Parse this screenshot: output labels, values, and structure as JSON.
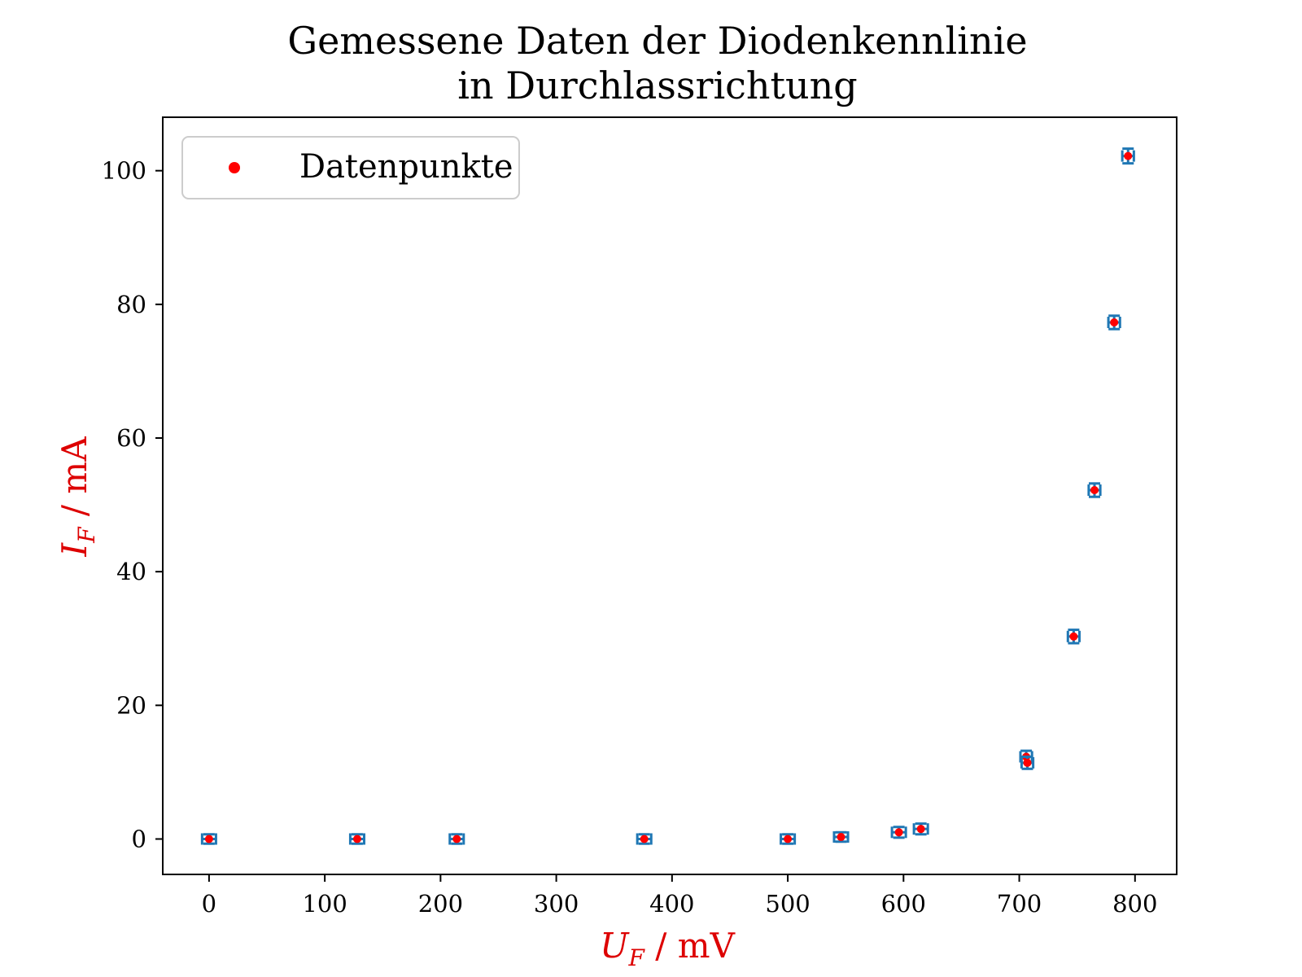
{
  "chart_data": {
    "type": "scatter",
    "title_line1": "Gemessene Daten der Diodenkennlinie",
    "title_line2": "in Durchlassrichtung",
    "xlabel": {
      "symbol": "U",
      "subscript": "F",
      "unit": " / mV"
    },
    "ylabel": {
      "symbol": "I",
      "subscript": "F",
      "unit": " / mA"
    },
    "label_color": "#dd0000",
    "xlim": [
      -40,
      836
    ],
    "ylim": [
      -5.3,
      108
    ],
    "xticks": [
      0,
      100,
      200,
      300,
      400,
      500,
      600,
      700,
      800
    ],
    "yticks": [
      0,
      20,
      40,
      60,
      80,
      100
    ],
    "grid": false,
    "legend": {
      "position": "top-left",
      "entries": [
        "Datenpunkte"
      ]
    },
    "series": [
      {
        "name": "Datenpunkte",
        "marker_color": "#ff0000",
        "errorbar_color": "#1f77b4",
        "points": [
          {
            "x": 0,
            "y": 0.0,
            "xerr": 6,
            "yerr": 0.7
          },
          {
            "x": 128,
            "y": 0.0,
            "xerr": 6,
            "yerr": 0.7
          },
          {
            "x": 214,
            "y": 0.0,
            "xerr": 6,
            "yerr": 0.7
          },
          {
            "x": 376,
            "y": 0.0,
            "xerr": 6,
            "yerr": 0.7
          },
          {
            "x": 500,
            "y": 0.0,
            "xerr": 6,
            "yerr": 0.7
          },
          {
            "x": 546,
            "y": 0.3,
            "xerr": 6,
            "yerr": 0.7
          },
          {
            "x": 596,
            "y": 1.0,
            "xerr": 6,
            "yerr": 0.8
          },
          {
            "x": 615,
            "y": 1.5,
            "xerr": 6,
            "yerr": 0.8
          },
          {
            "x": 706,
            "y": 12.3,
            "xerr": 5,
            "yerr": 0.9
          },
          {
            "x": 707,
            "y": 11.4,
            "xerr": 5,
            "yerr": 0.9
          },
          {
            "x": 747,
            "y": 30.3,
            "xerr": 5,
            "yerr": 1.0
          },
          {
            "x": 765,
            "y": 52.2,
            "xerr": 5,
            "yerr": 1.0
          },
          {
            "x": 782,
            "y": 77.3,
            "xerr": 5,
            "yerr": 1.0
          },
          {
            "x": 794,
            "y": 102.2,
            "xerr": 5,
            "yerr": 1.1
          }
        ]
      }
    ]
  }
}
